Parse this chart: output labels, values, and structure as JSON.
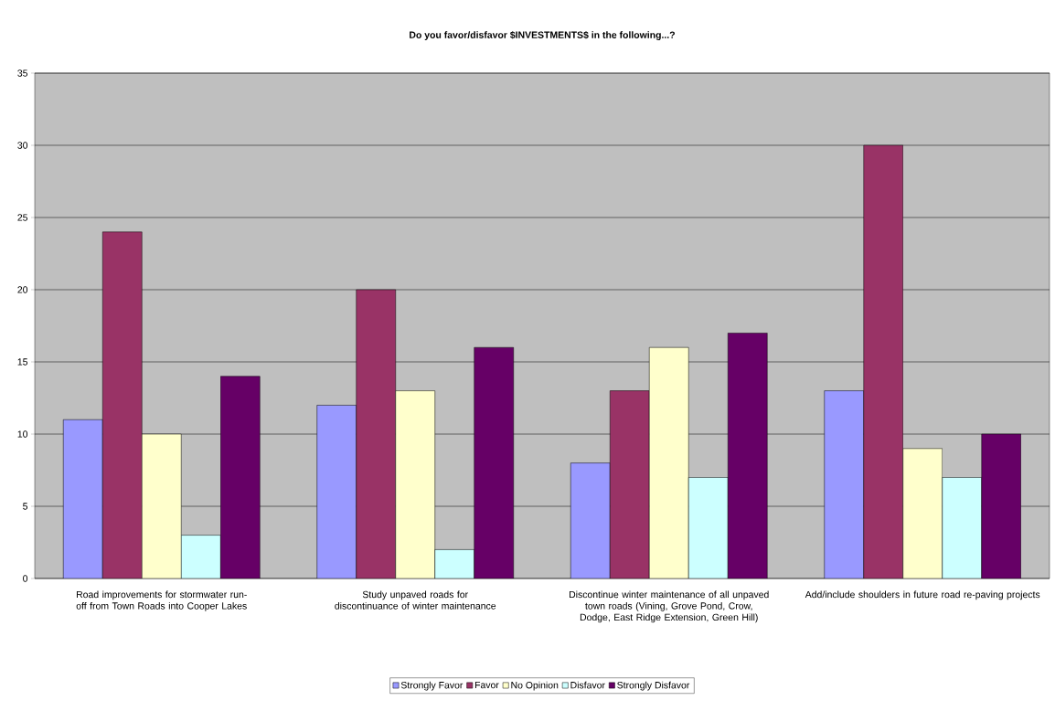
{
  "chart_data": {
    "type": "bar",
    "title": "Do you favor/disfavor $INVESTMENTS$ in the following...?",
    "categories": [
      "Road improvements for stormwater run-off from Town Roads into Cooper Lakes",
      "Study unpaved roads for discontinuance of winter maintenance",
      "Discontinue winter maintenance of all unpaved town roads (Vining, Grove Pond, Crow, Dodge, East Ridge Extension, Green Hill)",
      "Add/include shoulders in future road re-paving projects"
    ],
    "series": [
      {
        "name": "Strongly Favor",
        "color": "#9999ff",
        "values": [
          11,
          12,
          8,
          13
        ]
      },
      {
        "name": "Favor",
        "color": "#993366",
        "values": [
          24,
          20,
          13,
          30
        ]
      },
      {
        "name": "No Opinion",
        "color": "#ffffcc",
        "values": [
          10,
          13,
          16,
          9
        ]
      },
      {
        "name": "Disfavor",
        "color": "#ccffff",
        "values": [
          3,
          2,
          7,
          7
        ]
      },
      {
        "name": "Strongly Disfavor",
        "color": "#660066",
        "values": [
          14,
          16,
          17,
          10
        ]
      }
    ],
    "ylim": [
      0,
      35
    ],
    "yticks": [
      0,
      5,
      10,
      15,
      20,
      25,
      30,
      35
    ],
    "grid": "y",
    "legend": "bottom"
  }
}
